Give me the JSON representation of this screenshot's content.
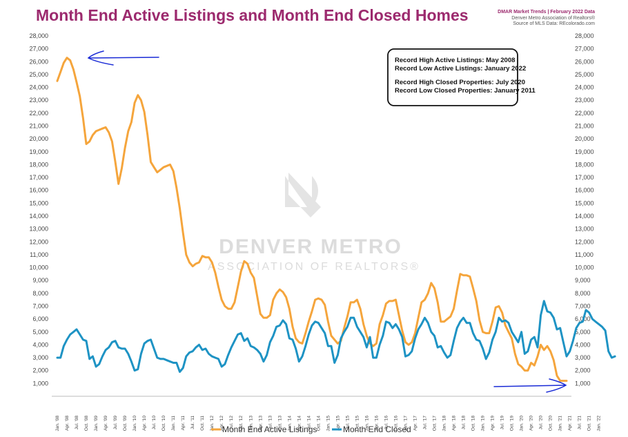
{
  "header": {
    "title": "Month End Active Listings and Month End Closed Homes",
    "credit_line1": "DMAR Market Trends | February 2022 Data",
    "credit_line2": "Denver Metro Association of Realtors®",
    "credit_line3": "Source of MLS Data: REcolorado.com"
  },
  "watermark": {
    "line1": "DENVER METRO",
    "line2": "ASSOCIATION OF REALTORS®"
  },
  "annotations": [
    "Record High Active Listings: May 2008",
    "Record Low Active Listings: January 2022",
    "Record High Closed Properties: July 2020",
    "Record Low Closed Properties: January 2011"
  ],
  "colors": {
    "active": "#f5a53c",
    "closed": "#1e93c4",
    "title": "#9c2a6e",
    "marker": "#1a2bd6"
  },
  "chart_data": {
    "type": "line",
    "title": "Month End Active Listings and Month End Closed Homes",
    "ylim": [
      0,
      28000
    ],
    "y_ticks": [
      0,
      1000,
      2000,
      3000,
      4000,
      5000,
      6000,
      7000,
      8000,
      9000,
      10000,
      11000,
      12000,
      13000,
      14000,
      15000,
      16000,
      17000,
      18000,
      19000,
      20000,
      21000,
      22000,
      23000,
      24000,
      25000,
      26000,
      27000,
      28000
    ],
    "y_tick_labels": [
      "",
      "1,000",
      "2,000",
      "3,000",
      "4,000",
      "5,000",
      "6,000",
      "7,000",
      "8,000",
      "9,000",
      "10,000",
      "11,000",
      "12,000",
      "13,000",
      "14,000",
      "15,000",
      "16,000",
      "17,000",
      "18,000",
      "19,000",
      "20,000",
      "21,000",
      "22,000",
      "23,000",
      "24,000",
      "25,000",
      "26,000",
      "27,000",
      "28,000"
    ],
    "x_tick_labels": [
      "Jan. '08",
      "Apr. '08",
      "Jul. '08",
      "Oct. '08",
      "Jan. '09",
      "Apr. '09",
      "Jul. '09",
      "Oct. '09",
      "Jan. '10",
      "Apr. '10",
      "Jul. '10",
      "Oct. '10",
      "Jan. '11",
      "Apr. '11",
      "Jul. '11",
      "Oct. '11",
      "Jan. '12",
      "Apr. '12",
      "Jul. '12",
      "Oct. '12",
      "Jan. '13",
      "Apr. '13",
      "Jul. '13",
      "Oct. '13",
      "Jan. '14",
      "Apr. '14",
      "Jul. '14",
      "Oct. '14",
      "Jan. '15",
      "Apr. '15",
      "Jul. '15",
      "Oct. '15",
      "Jan. '16",
      "Apr. '16",
      "Jul. '16",
      "Oct. '16",
      "Jan. '17",
      "Apr. '17",
      "Jul. '17",
      "Oct. '17",
      "Jan. '18",
      "Apr. '18",
      "Jul. '18",
      "Oct. '18",
      "Jan. '19",
      "Apr. '19",
      "Jul. '19",
      "Oct. '19",
      "Jan. '20",
      "Apr. '20",
      "Jul. '20",
      "Oct. '20",
      "Jan. '21",
      "Apr. '21",
      "Jul. '21",
      "Oct. '21",
      "Jan. '22"
    ],
    "x_start": "2008-01",
    "x_end": "2022-02",
    "legend_placement": "bottom",
    "grid": false,
    "series": [
      {
        "name": "Month End Active Listings",
        "color": "#f5a53c",
        "values": [
          24500,
          25200,
          25900,
          26300,
          26100,
          25400,
          24400,
          23300,
          21600,
          19600,
          19800,
          20300,
          20600,
          20700,
          20800,
          20900,
          20500,
          19800,
          18200,
          16500,
          17700,
          19300,
          20600,
          21300,
          22800,
          23400,
          23000,
          22100,
          20300,
          18200,
          17800,
          17400,
          17600,
          17800,
          17900,
          18000,
          17500,
          16200,
          14600,
          12700,
          11000,
          10400,
          10100,
          10300,
          10400,
          10900,
          10800,
          10800,
          10400,
          9600,
          8500,
          7500,
          7000,
          6800,
          6800,
          7300,
          8500,
          9700,
          10500,
          10300,
          9600,
          9200,
          7800,
          6400,
          6100,
          6100,
          6300,
          7500,
          8000,
          8300,
          8100,
          7700,
          6800,
          5400,
          4500,
          4200,
          4100,
          4900,
          5800,
          6600,
          7500,
          7600,
          7500,
          7100,
          5800,
          4700,
          4400,
          4100,
          4300,
          5300,
          6200,
          7300,
          7300,
          7500,
          6800,
          5600,
          4700,
          4100,
          3900,
          4100,
          5600,
          6300,
          7200,
          7400,
          7400,
          7500,
          6300,
          5100,
          4200,
          4000,
          4200,
          4900,
          6100,
          7300,
          7500,
          8000,
          8800,
          8400,
          7300,
          5800,
          5800,
          6000,
          6200,
          6800,
          8200,
          9500,
          9400,
          9400,
          9300,
          8400,
          7400,
          5900,
          5000,
          4900,
          4900,
          5800,
          6900,
          7000,
          6500,
          5500,
          5000,
          4500,
          3300,
          2500,
          2300,
          2000,
          2000,
          2600,
          2400,
          3100,
          4000,
          3600,
          3900,
          3500,
          2800,
          1600,
          1200,
          1200,
          1200
        ]
      },
      {
        "name": "Month End Closed",
        "color": "#1e93c4",
        "values": [
          3000,
          3000,
          3900,
          4400,
          4800,
          5000,
          5200,
          4800,
          4400,
          4300,
          2900,
          3100,
          2300,
          2500,
          3100,
          3600,
          3800,
          4200,
          4300,
          3800,
          3700,
          3700,
          3300,
          2700,
          2000,
          2100,
          3300,
          4100,
          4300,
          4400,
          3700,
          3000,
          2900,
          2900,
          2800,
          2700,
          2600,
          2600,
          1900,
          2200,
          3100,
          3400,
          3500,
          3800,
          4000,
          3600,
          3700,
          3300,
          3100,
          3000,
          2900,
          2300,
          2500,
          3200,
          3800,
          4300,
          4800,
          4900,
          4300,
          4500,
          3900,
          3800,
          3600,
          3300,
          2700,
          3200,
          4200,
          4700,
          5400,
          5500,
          5900,
          5600,
          4500,
          4400,
          3700,
          2700,
          3100,
          3900,
          4800,
          5500,
          5800,
          5700,
          5300,
          4900,
          3900,
          3900,
          2600,
          3200,
          4500,
          5000,
          5400,
          6100,
          6100,
          5400,
          5000,
          4600,
          3800,
          4600,
          3000,
          3000,
          4000,
          4700,
          5800,
          5700,
          5300,
          5600,
          5200,
          4600,
          3100,
          3200,
          3500,
          4500,
          5200,
          5600,
          6100,
          5700,
          5000,
          4700,
          3800,
          3900,
          3400,
          3000,
          3200,
          4300,
          5300,
          5800,
          6100,
          5700,
          5700,
          4900,
          4400,
          4300,
          3700,
          2900,
          3400,
          4400,
          5000,
          6100,
          5800,
          5900,
          5700,
          5000,
          4600,
          4200,
          5000,
          3300,
          3500,
          4400,
          4600,
          3800,
          6300,
          7400,
          6600,
          6500,
          6100,
          5200,
          5300,
          4200,
          3100,
          3500,
          4300,
          5300,
          5700,
          5800,
          6700,
          6500,
          6000,
          5800,
          5600,
          5400,
          5100,
          3500,
          3000,
          3100
        ]
      }
    ]
  }
}
